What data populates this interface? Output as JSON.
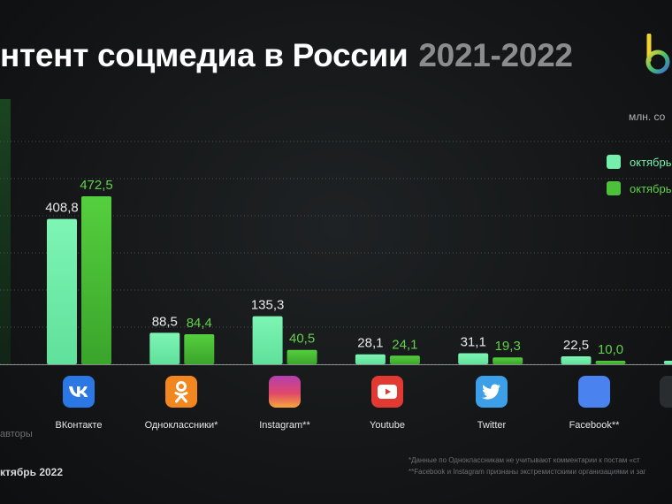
{
  "title": "нтент соцмедиа в России",
  "title_years": "2021-2022",
  "unit_label": "млн. со",
  "left_side_text": "авторы",
  "period_text": "ктябрь 2022",
  "footnotes": [
    "*Данные по Одноклассникам не учитывают комментарии к постам «ст",
    "**Facebook и Instagram признаны экстремистскими организациями и заг"
  ],
  "colors": {
    "series_2021": "#74f0aa",
    "series_2022": "#4cc23a",
    "label_2022": "#63d04c"
  },
  "chart_data": {
    "type": "bar",
    "title": "нтент соцмедиа в России 2021-2022",
    "ylabel": "млн. со",
    "categories": [
      "ВКонтакте",
      "Одноклассники*",
      "Instagram**",
      "Youtube",
      "Twitter",
      "Facebook**",
      ""
    ],
    "series": [
      {
        "name": "октябрь",
        "values": [
          408.8,
          88.5,
          135.3,
          28.1,
          31.1,
          22.5,
          8
        ]
      },
      {
        "name": "октябрь",
        "values": [
          472.5,
          84.4,
          40.5,
          24.1,
          19.3,
          10.0,
          null
        ]
      }
    ],
    "value_labels": [
      [
        "408,8",
        "88,5",
        "135,3",
        "28,1",
        "31,1",
        "22,5",
        "8"
      ],
      [
        "472,5",
        "84,4",
        "40,5",
        "24,1",
        "19,3",
        "10,0",
        ""
      ]
    ],
    "ylim": [
      0,
      500
    ],
    "grid": true,
    "legend": "top-right"
  },
  "icons": [
    "vk-icon",
    "odnoklassniki-icon",
    "instagram-icon",
    "youtube-icon",
    "twitter-icon",
    "facebook-icon",
    ""
  ]
}
